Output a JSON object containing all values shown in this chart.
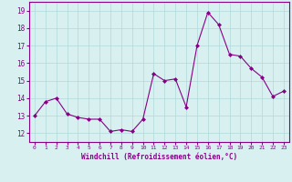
{
  "x": [
    0,
    1,
    2,
    3,
    4,
    5,
    6,
    7,
    8,
    9,
    10,
    11,
    12,
    13,
    14,
    15,
    16,
    17,
    18,
    19,
    20,
    21,
    22,
    23
  ],
  "y": [
    13.0,
    13.8,
    14.0,
    13.1,
    12.9,
    12.8,
    12.8,
    12.1,
    12.2,
    12.1,
    12.8,
    15.4,
    15.0,
    15.1,
    13.5,
    17.0,
    18.9,
    18.2,
    16.5,
    16.4,
    15.7,
    15.2,
    14.1,
    14.4
  ],
  "line_color": "#880088",
  "marker": "D",
  "marker_size": 2,
  "bg_color": "#d8f0f0",
  "grid_color": "#b0d8d8",
  "xlabel": "Windchill (Refroidissement éolien,°C)",
  "xlabel_color": "#880088",
  "tick_color": "#880088",
  "ylim": [
    11.5,
    19.5
  ],
  "xlim": [
    -0.5,
    23.5
  ],
  "yticks": [
    12,
    13,
    14,
    15,
    16,
    17,
    18,
    19
  ],
  "xticks": [
    0,
    1,
    2,
    3,
    4,
    5,
    6,
    7,
    8,
    9,
    10,
    11,
    12,
    13,
    14,
    15,
    16,
    17,
    18,
    19,
    20,
    21,
    22,
    23
  ],
  "xtick_labels": [
    "0",
    "1",
    "2",
    "3",
    "4",
    "5",
    "6",
    "7",
    "8",
    "9",
    "10",
    "11",
    "12",
    "13",
    "14",
    "15",
    "16",
    "17",
    "18",
    "19",
    "20",
    "21",
    "22",
    "23"
  ]
}
